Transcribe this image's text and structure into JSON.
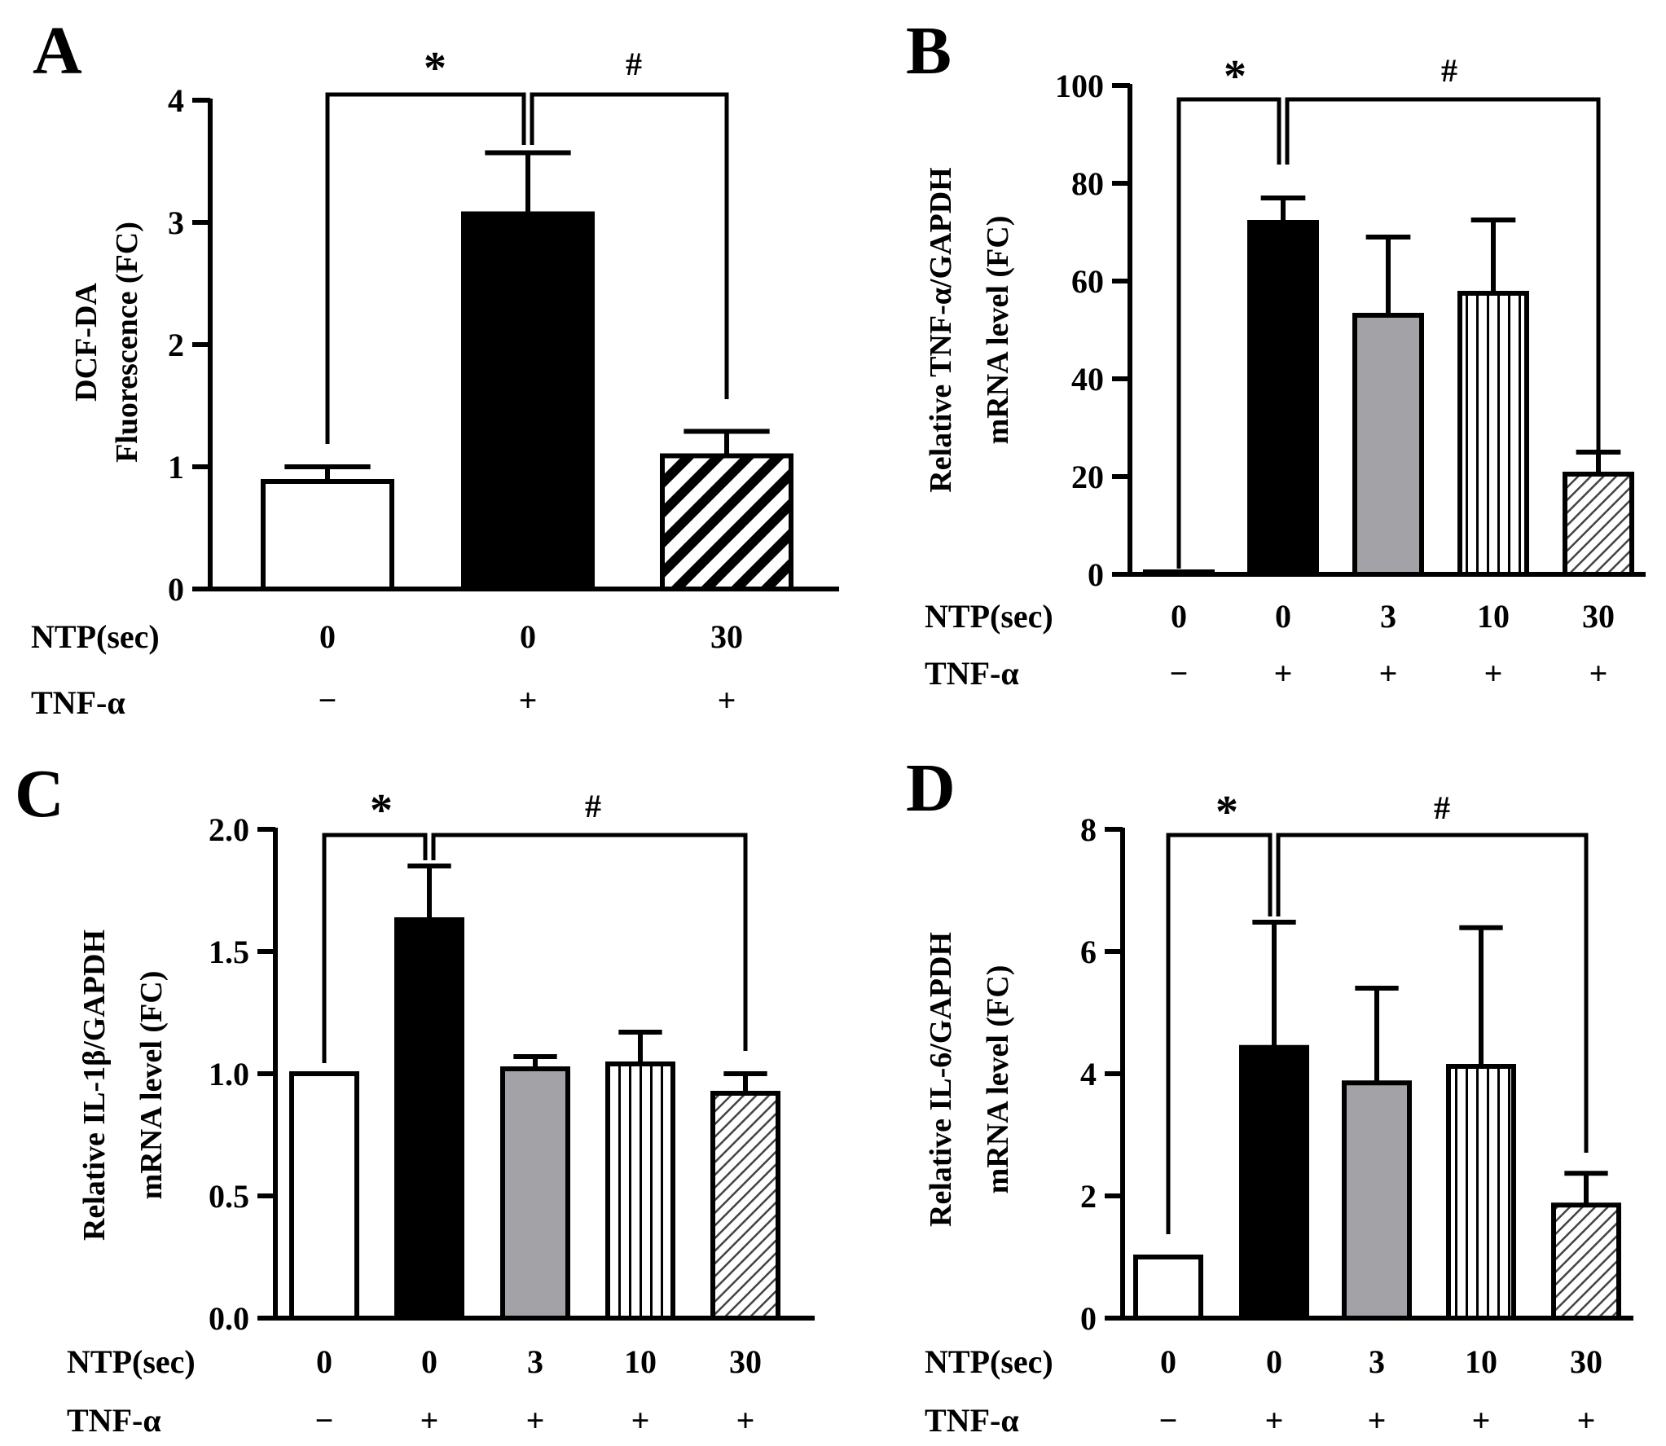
{
  "chart_data": [
    {
      "type": "bar",
      "panel": "A",
      "ylabel_lines": [
        "DCF-DA",
        "Fluorescence (FC)"
      ],
      "ylim": [
        0,
        4
      ],
      "yticks": [
        0,
        1,
        2,
        3,
        4
      ],
      "row_labels": [
        "NTP(sec)",
        "TNF-α"
      ],
      "ntp": [
        "0",
        "0",
        "30"
      ],
      "tnf": [
        "−",
        "+",
        "+"
      ],
      "values": [
        0.88,
        3.07,
        1.09
      ],
      "errors": [
        0.12,
        0.5,
        0.2
      ],
      "fills": [
        "white",
        "black",
        "stripe-wide",
        "",
        ""
      ],
      "significance": [
        "*",
        "#"
      ]
    },
    {
      "type": "bar",
      "panel": "B",
      "ylabel_lines": [
        "Relative TNF-α/GAPDH",
        "mRNA level (FC)"
      ],
      "ylim": [
        0,
        100
      ],
      "yticks": [
        0,
        20,
        40,
        60,
        80,
        100
      ],
      "row_labels": [
        "NTP(sec)",
        "TNF-α"
      ],
      "ntp": [
        "0",
        "0",
        "3",
        "10",
        "30"
      ],
      "tnf": [
        "−",
        "+",
        "+",
        "+",
        "+"
      ],
      "values": [
        0.5,
        72,
        53,
        57.5,
        20.5
      ],
      "errors": [
        0,
        5,
        16,
        15,
        4.5
      ],
      "fills": [
        "white",
        "black",
        "gray",
        "vlines",
        "hatch"
      ],
      "significance": [
        "*",
        "#"
      ]
    },
    {
      "type": "bar",
      "panel": "C",
      "ylabel_lines": [
        "Relative IL-1β/GAPDH",
        "mRNA level (FC)"
      ],
      "ylim": [
        0,
        2
      ],
      "yticks": [
        "0.0",
        "0.5",
        "1.0",
        "1.5",
        "2.0"
      ],
      "row_labels": [
        "NTP(sec)",
        "TNF-α"
      ],
      "ntp": [
        "0",
        "0",
        "3",
        "10",
        "30"
      ],
      "tnf": [
        "−",
        "+",
        "+",
        "+",
        "+"
      ],
      "values": [
        1.0,
        1.63,
        1.02,
        1.04,
        0.92
      ],
      "errors": [
        0,
        0.22,
        0.05,
        0.13,
        0.08
      ],
      "fills": [
        "white",
        "black",
        "gray",
        "vlines",
        "hatch"
      ],
      "significance": [
        "*",
        "#"
      ]
    },
    {
      "type": "bar",
      "panel": "D",
      "ylabel_lines": [
        "Relative IL-6/GAPDH",
        "mRNA level (FC)"
      ],
      "ylim": [
        0,
        8
      ],
      "yticks": [
        0,
        2,
        4,
        6,
        8
      ],
      "row_labels": [
        "NTP(sec)",
        "TNF-α"
      ],
      "ntp": [
        "0",
        "0",
        "3",
        "10",
        "30"
      ],
      "tnf": [
        "−",
        "+",
        "+",
        "+",
        "+"
      ],
      "values": [
        1.0,
        4.43,
        3.85,
        4.12,
        1.85
      ],
      "errors": [
        0,
        2.05,
        1.55,
        2.27,
        0.52
      ],
      "fills": [
        "white",
        "black",
        "gray",
        "vlines",
        "hatch"
      ],
      "significance": [
        "*",
        "#"
      ]
    }
  ]
}
